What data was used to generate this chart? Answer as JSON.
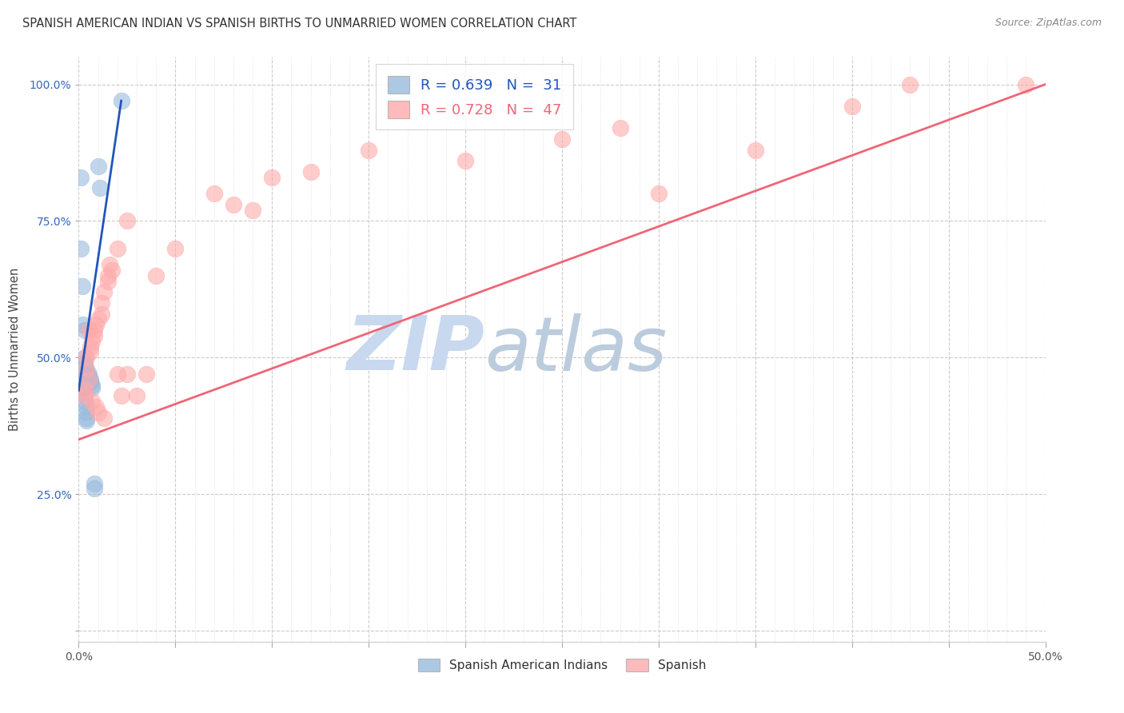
{
  "title": "SPANISH AMERICAN INDIAN VS SPANISH BIRTHS TO UNMARRIED WOMEN CORRELATION CHART",
  "source": "Source: ZipAtlas.com",
  "ylabel": "Births to Unmarried Women",
  "xlim": [
    0.0,
    50.0
  ],
  "ylim": [
    -2.0,
    105.0
  ],
  "xticks": [
    0.0,
    5.0,
    10.0,
    15.0,
    20.0,
    25.0,
    30.0,
    35.0,
    40.0,
    45.0,
    50.0
  ],
  "xticklabels_show": {
    "0.0": "0.0%",
    "50.0": "50.0%"
  },
  "yticks": [
    0.0,
    25.0,
    50.0,
    75.0,
    100.0
  ],
  "yticklabels": [
    "",
    "25.0%",
    "50.0%",
    "75.0%",
    "100.0%"
  ],
  "legend_labels": [
    "Spanish American Indians",
    "Spanish"
  ],
  "legend_R_blue": "R = 0.639",
  "legend_N_blue": "N =  31",
  "legend_R_pink": "R = 0.728",
  "legend_N_pink": "N =  47",
  "blue_color": "#99bbdd",
  "pink_color": "#ffaaaa",
  "blue_line_color": "#2255bb",
  "pink_line_color": "#ee6677",
  "watermark_zip": "ZIP",
  "watermark_atlas": "atlas",
  "watermark_color_zip": "#c8d8ee",
  "watermark_color_atlas": "#bbccdd",
  "grid_color": "#cccccc",
  "blue_scatter": [
    [
      0.1,
      83.0
    ],
    [
      0.1,
      70.0
    ],
    [
      0.2,
      63.0
    ],
    [
      0.2,
      56.0
    ],
    [
      0.3,
      55.0
    ],
    [
      0.3,
      50.0
    ],
    [
      0.3,
      49.0
    ],
    [
      0.3,
      48.0
    ],
    [
      0.3,
      47.0
    ],
    [
      0.3,
      46.0
    ],
    [
      0.3,
      45.5
    ],
    [
      0.3,
      44.5
    ],
    [
      0.3,
      44.0
    ],
    [
      0.3,
      43.0
    ],
    [
      0.3,
      42.0
    ],
    [
      0.4,
      41.0
    ],
    [
      0.4,
      40.0
    ],
    [
      0.4,
      39.0
    ],
    [
      0.4,
      38.5
    ],
    [
      0.4,
      47.5
    ],
    [
      0.5,
      47.0
    ],
    [
      0.5,
      46.5
    ],
    [
      0.6,
      46.0
    ],
    [
      0.6,
      45.5
    ],
    [
      0.7,
      45.0
    ],
    [
      0.7,
      44.5
    ],
    [
      0.8,
      27.0
    ],
    [
      0.8,
      26.0
    ],
    [
      1.0,
      85.0
    ],
    [
      1.1,
      81.0
    ],
    [
      2.2,
      97.0
    ]
  ],
  "pink_scatter": [
    [
      0.3,
      44.0
    ],
    [
      0.3,
      43.0
    ],
    [
      0.4,
      50.0
    ],
    [
      0.4,
      48.0
    ],
    [
      0.5,
      55.0
    ],
    [
      0.5,
      46.0
    ],
    [
      0.6,
      52.0
    ],
    [
      0.6,
      51.0
    ],
    [
      0.7,
      53.0
    ],
    [
      0.7,
      42.0
    ],
    [
      0.8,
      55.0
    ],
    [
      0.8,
      54.0
    ],
    [
      0.9,
      56.0
    ],
    [
      0.9,
      41.0
    ],
    [
      1.0,
      57.0
    ],
    [
      1.0,
      40.0
    ],
    [
      1.2,
      60.0
    ],
    [
      1.2,
      58.0
    ],
    [
      1.3,
      62.0
    ],
    [
      1.3,
      39.0
    ],
    [
      1.5,
      65.0
    ],
    [
      1.5,
      64.0
    ],
    [
      1.6,
      67.0
    ],
    [
      1.7,
      66.0
    ],
    [
      2.0,
      70.0
    ],
    [
      2.0,
      47.0
    ],
    [
      2.2,
      43.0
    ],
    [
      2.5,
      75.0
    ],
    [
      2.5,
      47.0
    ],
    [
      3.0,
      43.0
    ],
    [
      3.5,
      47.0
    ],
    [
      4.0,
      65.0
    ],
    [
      5.0,
      70.0
    ],
    [
      7.0,
      80.0
    ],
    [
      8.0,
      78.0
    ],
    [
      9.0,
      77.0
    ],
    [
      10.0,
      83.0
    ],
    [
      12.0,
      84.0
    ],
    [
      15.0,
      88.0
    ],
    [
      20.0,
      86.0
    ],
    [
      25.0,
      90.0
    ],
    [
      28.0,
      92.0
    ],
    [
      30.0,
      80.0
    ],
    [
      35.0,
      88.0
    ],
    [
      40.0,
      96.0
    ],
    [
      43.0,
      100.0
    ],
    [
      49.0,
      100.0
    ]
  ],
  "blue_trendline_x": [
    0.0,
    2.2
  ],
  "blue_trendline_y": [
    44.0,
    97.0
  ],
  "pink_trendline_x": [
    0.0,
    50.0
  ],
  "pink_trendline_y": [
    35.0,
    100.0
  ]
}
